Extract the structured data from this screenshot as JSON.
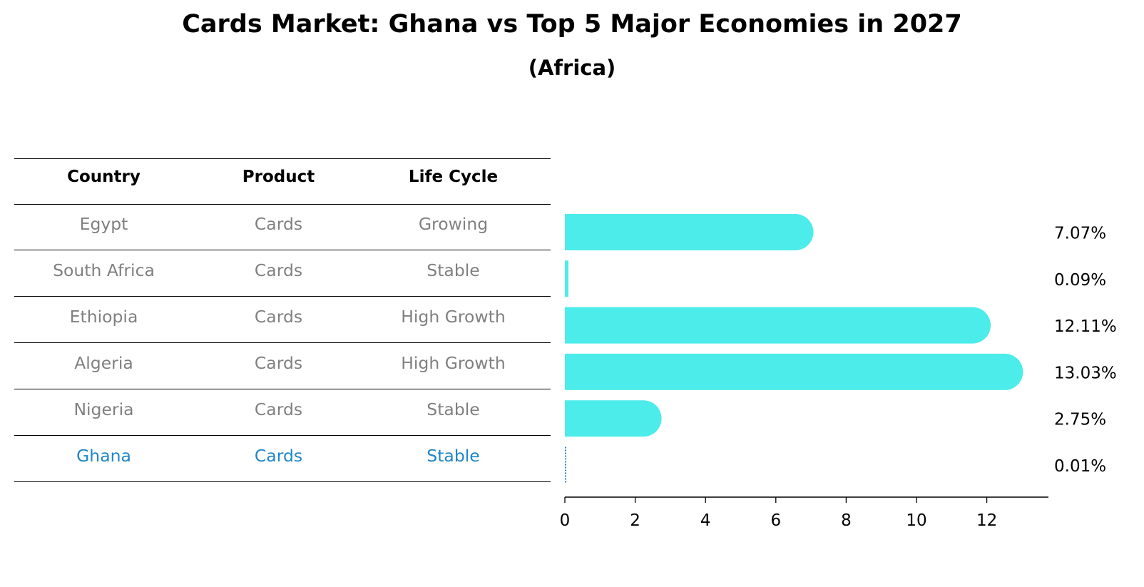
{
  "title": "Cards Market: Ghana vs Top 5 Major Economies in 2027",
  "subtitle": "(Africa)",
  "table": {
    "headers": [
      "Country",
      "Product",
      "Life Cycle"
    ],
    "rows": [
      {
        "country": "Egypt",
        "product": "Cards",
        "life_cycle": "Growing",
        "highlight": false
      },
      {
        "country": "South Africa",
        "product": "Cards",
        "life_cycle": "Stable",
        "highlight": false
      },
      {
        "country": "Ethiopia",
        "product": "Cards",
        "life_cycle": "High Growth",
        "highlight": false
      },
      {
        "country": "Algeria",
        "product": "Cards",
        "life_cycle": "High Growth",
        "highlight": false
      },
      {
        "country": "Nigeria",
        "product": "Cards",
        "life_cycle": "Stable",
        "highlight": false
      },
      {
        "country": "Ghana",
        "product": "Cards",
        "life_cycle": "Stable",
        "highlight": true
      }
    ]
  },
  "colors": {
    "bar": "#4cecea",
    "highlight_bar": "#1f86c8",
    "highlight_text": "#1f86c8",
    "muted_text": "#808080"
  },
  "chart_data": {
    "type": "bar",
    "orientation": "horizontal",
    "categories": [
      "Egypt",
      "South Africa",
      "Ethiopia",
      "Algeria",
      "Nigeria",
      "Ghana"
    ],
    "values": [
      7.07,
      0.09,
      12.11,
      13.03,
      2.75,
      0.01
    ],
    "value_labels": [
      "7.07%",
      "0.09%",
      "12.11%",
      "13.03%",
      "2.75%",
      "0.01%"
    ],
    "xticks": [
      0,
      2,
      4,
      6,
      8,
      10,
      12
    ],
    "xlim": [
      0,
      13.7
    ],
    "grid": false,
    "legend": "none"
  }
}
